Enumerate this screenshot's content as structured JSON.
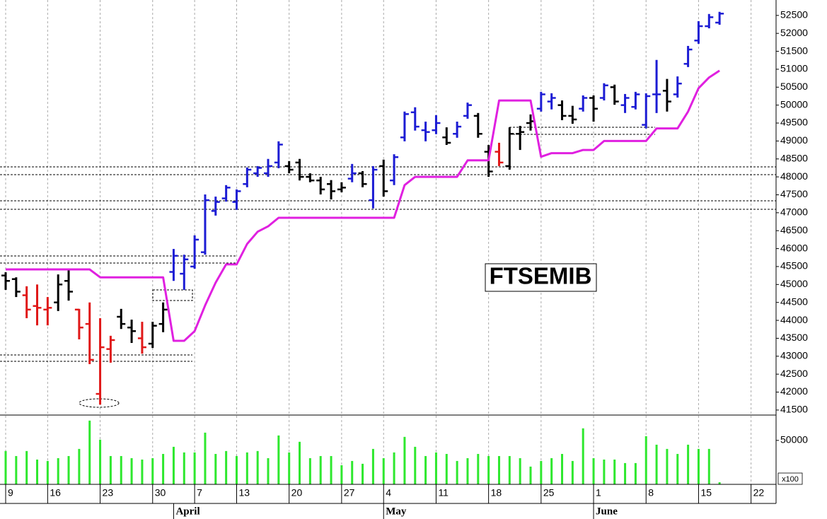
{
  "chart_data": [
    {
      "type": "ohlc",
      "title": "FTSEMIB",
      "open": [
        45250,
        45150,
        44700,
        44400,
        44300,
        44500,
        45100,
        44300,
        43900,
        41950,
        43200,
        44100,
        43800,
        43500,
        43350,
        43900,
        45350,
        45300,
        45500,
        45900,
        47050,
        47400,
        47300,
        47800,
        48100,
        48100,
        48400,
        48300,
        48400,
        48000,
        47900,
        47800,
        47650,
        47950,
        48100,
        47350,
        48300,
        47900,
        49100,
        49800,
        49300,
        49300,
        49100,
        49200,
        49700,
        49700,
        48700,
        48700,
        48300,
        49200,
        49500,
        49900,
        50100,
        50000,
        49700,
        49900,
        50200,
        50200,
        50500,
        50000,
        49950,
        49450,
        50300,
        50400,
        50300,
        51150,
        51800,
        52200,
        52300,
        null,
        null,
        null
      ],
      "high": [
        45340,
        45200,
        44950,
        45000,
        44650,
        45280,
        45440,
        44320,
        44500,
        44060,
        43570,
        44320,
        44020,
        43960,
        43960,
        44500,
        45990,
        45830,
        46370,
        47510,
        47450,
        47770,
        47650,
        48260,
        48300,
        48500,
        48990,
        48440,
        48500,
        48100,
        48000,
        47910,
        47850,
        48360,
        48160,
        48300,
        48480,
        48630,
        49820,
        49940,
        49540,
        49720,
        49380,
        49540,
        50070,
        49780,
        48890,
        48950,
        49380,
        49420,
        49740,
        50370,
        50330,
        50130,
        49980,
        50270,
        50270,
        50610,
        50570,
        50310,
        50370,
        50330,
        51260,
        50730,
        50800,
        51650,
        52340,
        52540,
        52600,
        null,
        null,
        null
      ],
      "low": [
        44850,
        44650,
        44060,
        43860,
        43860,
        44260,
        44550,
        43470,
        42780,
        41650,
        42820,
        43760,
        43370,
        43070,
        43230,
        43670,
        45100,
        44850,
        45440,
        45830,
        46920,
        47310,
        47080,
        47710,
        48000,
        48000,
        48240,
        48100,
        47900,
        47850,
        47510,
        47370,
        47570,
        47850,
        47710,
        47120,
        47450,
        47770,
        48990,
        49290,
        48990,
        49190,
        48890,
        49090,
        49620,
        49090,
        48000,
        48300,
        48200,
        48750,
        49290,
        49820,
        49880,
        49580,
        49480,
        49820,
        49540,
        50130,
        50010,
        49780,
        49880,
        49350,
        49780,
        49820,
        50210,
        51060,
        51710,
        52140,
        52240,
        null,
        null,
        null
      ],
      "close": [
        45100,
        44800,
        44300,
        44350,
        44350,
        45000,
        44800,
        43800,
        42900,
        43250,
        43450,
        43900,
        43700,
        43250,
        43850,
        44300,
        45800,
        45700,
        46250,
        47350,
        47300,
        47700,
        47600,
        48200,
        48250,
        48300,
        48900,
        48200,
        48000,
        47900,
        47650,
        47600,
        47700,
        48100,
        47800,
        48200,
        47600,
        48550,
        49750,
        49400,
        49250,
        49500,
        48950,
        49400,
        50000,
        49200,
        48150,
        48400,
        49200,
        49250,
        49550,
        50300,
        50200,
        49700,
        49600,
        50200,
        49900,
        50550,
        50100,
        50200,
        50300,
        50250,
        50300,
        50100,
        50600,
        51550,
        52200,
        52450,
        52550,
        null,
        null,
        null
      ],
      "colors": [
        "#000000",
        "#000000",
        "#e01818",
        "#e01818",
        "#e01818",
        "#000000",
        "#000000",
        "#e01818",
        "#e01818",
        "#e01818",
        "#e01818",
        "#000000",
        "#000000",
        "#e01818",
        "#000000",
        "#000000",
        "#1c1cd4",
        "#1c1cd4",
        "#1c1cd4",
        "#1c1cd4",
        "#1c1cd4",
        "#1c1cd4",
        "#1c1cd4",
        "#1c1cd4",
        "#1c1cd4",
        "#1c1cd4",
        "#1c1cd4",
        "#000000",
        "#000000",
        "#000000",
        "#000000",
        "#000000",
        "#000000",
        "#1c1cd4",
        "#000000",
        "#1c1cd4",
        "#000000",
        "#1c1cd4",
        "#1c1cd4",
        "#1c1cd4",
        "#1c1cd4",
        "#1c1cd4",
        "#000000",
        "#1c1cd4",
        "#1c1cd4",
        "#000000",
        "#000000",
        "#e01818",
        "#000000",
        "#000000",
        "#000000",
        "#1c1cd4",
        "#1c1cd4",
        "#000000",
        "#000000",
        "#1c1cd4",
        "#000000",
        "#1c1cd4",
        "#000000",
        "#1c1cd4",
        "#1c1cd4",
        "#1c1cd4",
        "#1c1cd4",
        "#000000",
        "#1c1cd4",
        "#1c1cd4",
        "#1c1cd4",
        "#1c1cd4",
        "#1c1cd4",
        null,
        null,
        null
      ],
      "line_values": [
        45420,
        45420,
        45420,
        45420,
        45420,
        45420,
        45420,
        45420,
        45420,
        45200,
        45200,
        45200,
        45200,
        45200,
        45200,
        45200,
        43430,
        43430,
        43700,
        44420,
        45050,
        45560,
        45560,
        46130,
        46470,
        46620,
        46860,
        46860,
        46860,
        46860,
        46860,
        46860,
        46860,
        46860,
        46860,
        46860,
        46860,
        46860,
        47770,
        48000,
        48000,
        48000,
        48000,
        48000,
        48460,
        48460,
        48460,
        50130,
        50130,
        50130,
        50130,
        48560,
        48660,
        48660,
        48660,
        48750,
        48750,
        49000,
        49000,
        49000,
        49000,
        49000,
        49350,
        49350,
        49350,
        49820,
        50470,
        50770,
        50960,
        null,
        null,
        null
      ],
      "line_color": "#e020e0",
      "ylim": [
        41360,
        52930
      ],
      "yticks": [
        41500,
        42000,
        42500,
        43000,
        43500,
        44000,
        44500,
        45000,
        45500,
        46000,
        46500,
        47000,
        47500,
        48000,
        48500,
        49000,
        49500,
        50000,
        50500,
        51000,
        51500,
        52000,
        52500
      ]
    },
    {
      "type": "bar",
      "values": [
        37900,
        32200,
        37900,
        28200,
        26600,
        29800,
        32200,
        40300,
        72500,
        50800,
        32200,
        32200,
        29800,
        28200,
        29800,
        34600,
        42700,
        36300,
        36300,
        58800,
        34600,
        37900,
        32200,
        36300,
        37900,
        29800,
        55600,
        36300,
        48400,
        29800,
        32200,
        32200,
        21800,
        26600,
        23400,
        40300,
        29800,
        36300,
        54000,
        42700,
        32200,
        36300,
        34600,
        26600,
        29800,
        34600,
        32200,
        32200,
        32200,
        29800,
        20200,
        26600,
        29800,
        34600,
        26600,
        63700,
        29800,
        28200,
        28200,
        24200,
        24200,
        54800,
        45100,
        40300,
        34600,
        45100,
        40300,
        40300,
        2400,
        null,
        null,
        null
      ],
      "color": "#2ee82e",
      "ylim": [
        0,
        78000
      ],
      "yticks": [
        50000
      ],
      "unit_label": "x100",
      "categories": [
        "9",
        null,
        null,
        null,
        "16",
        null,
        null,
        null,
        null,
        "23",
        null,
        null,
        null,
        null,
        "30",
        null,
        null,
        null,
        "7",
        null,
        null,
        null,
        "13",
        null,
        null,
        null,
        null,
        "20",
        null,
        null,
        null,
        null,
        "27",
        null,
        null,
        null,
        "4",
        null,
        null,
        null,
        null,
        "11",
        null,
        null,
        null,
        null,
        "18",
        null,
        null,
        null,
        null,
        "25",
        null,
        null,
        null,
        null,
        "1",
        null,
        null,
        null,
        null,
        "8",
        null,
        null,
        null,
        null,
        "15",
        null,
        null,
        null,
        null,
        "22"
      ],
      "month_labels": [
        null,
        null,
        null,
        null,
        null,
        null,
        null,
        null,
        null,
        null,
        null,
        null,
        null,
        null,
        null,
        null,
        "April",
        null,
        null,
        null,
        null,
        null,
        null,
        null,
        null,
        null,
        null,
        null,
        null,
        null,
        null,
        null,
        null,
        null,
        null,
        null,
        "May",
        null,
        null,
        null,
        null,
        null,
        null,
        null,
        null,
        null,
        null,
        null,
        null,
        null,
        null,
        null,
        null,
        null,
        null,
        null,
        "June",
        null,
        null,
        null,
        null,
        null,
        null,
        null,
        null,
        null,
        null,
        null,
        null,
        null,
        null,
        null
      ],
      "x_grid": true
    }
  ]
}
